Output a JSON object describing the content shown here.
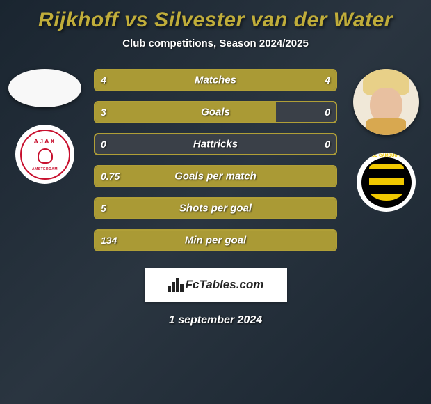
{
  "header": {
    "title": "Rijkhoff vs Silvester van der Water",
    "subtitle": "Club competitions, Season 2024/2025"
  },
  "player1": {
    "name": "Rijkhoff",
    "club_top": "AJAX",
    "club_bottom": "AMSTERDAM"
  },
  "player2": {
    "name": "Silvester van der Water",
    "club_arc": "SC CAMBUUR"
  },
  "colors": {
    "border": "#b09f37",
    "fill_primary": "#aa9a35",
    "fill_empty": "#3a4048",
    "text": "#ffffff"
  },
  "stats": [
    {
      "label": "Matches",
      "left_value": "4",
      "right_value": "4",
      "left_weight": 4,
      "right_weight": 4
    },
    {
      "label": "Goals",
      "left_value": "3",
      "right_value": "0",
      "left_weight": 3,
      "right_weight": 0
    },
    {
      "label": "Hattricks",
      "left_value": "0",
      "right_value": "0",
      "left_weight": 0,
      "right_weight": 0
    },
    {
      "label": "Goals per match",
      "left_value": "0.75",
      "right_value": "",
      "left_weight": 0.75,
      "right_weight": 0
    },
    {
      "label": "Shots per goal",
      "left_value": "5",
      "right_value": "",
      "left_weight": 5,
      "right_weight": 0
    },
    {
      "label": "Min per goal",
      "left_value": "134",
      "right_value": "",
      "left_weight": 134,
      "right_weight": 0
    }
  ],
  "footer": {
    "watermark": "FcTables.com",
    "date": "1 september 2024"
  }
}
